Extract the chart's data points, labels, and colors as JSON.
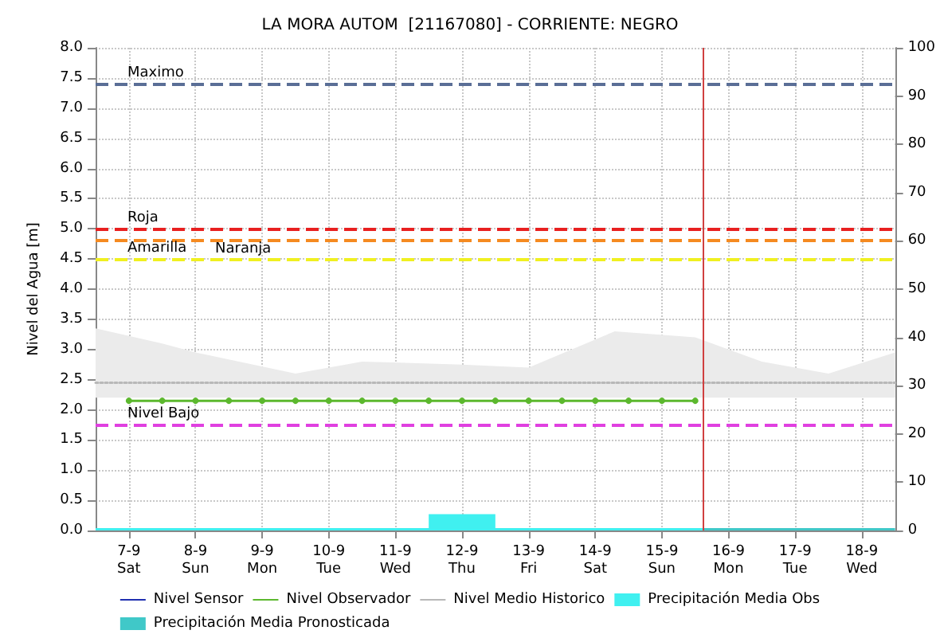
{
  "chart_data": {
    "type": "line",
    "title": "LA MORA AUTOM  [21167080] - CORRIENTE: NEGRO",
    "ylabel": "Nivel del Agua [m]",
    "xlim": [
      "--09-06T12:00",
      "--09-18T12:00"
    ],
    "xticks": [
      {
        "value": "--09-07",
        "label": "7-9\nSat"
      },
      {
        "value": "--09-08",
        "label": "8-9\nSun"
      },
      {
        "value": "--09-09",
        "label": "9-9\nMon"
      },
      {
        "value": "--09-10",
        "label": "10-9\nTue"
      },
      {
        "value": "--09-11",
        "label": "11-9\nWed"
      },
      {
        "value": "--09-12",
        "label": "12-9\nThu"
      },
      {
        "value": "--09-13",
        "label": "13-9\nFri"
      },
      {
        "value": "--09-14",
        "label": "14-9\nSat"
      },
      {
        "value": "--09-15",
        "label": "15-9\nSun"
      },
      {
        "value": "--09-16",
        "label": "16-9\nMon"
      },
      {
        "value": "--09-17",
        "label": "17-9\nTue"
      },
      {
        "value": "--09-18",
        "label": "18-9\nWed"
      }
    ],
    "ylim": [
      0,
      8
    ],
    "yticks": [
      {
        "value": 0,
        "label": "0.0"
      },
      {
        "value": 0.5,
        "label": "0.5"
      },
      {
        "value": 1,
        "label": "1.0"
      },
      {
        "value": 1.5,
        "label": "1.5"
      },
      {
        "value": 2,
        "label": "2.0"
      },
      {
        "value": 2.5,
        "label": "2.5"
      },
      {
        "value": 3,
        "label": "3.0"
      },
      {
        "value": 3.5,
        "label": "3.5"
      },
      {
        "value": 4,
        "label": "4.0"
      },
      {
        "value": 4.5,
        "label": "4.5"
      },
      {
        "value": 5,
        "label": "5.0"
      },
      {
        "value": 5.5,
        "label": "5.5"
      },
      {
        "value": 6,
        "label": "6.0"
      },
      {
        "value": 6.5,
        "label": "6.5"
      },
      {
        "value": 7,
        "label": "7.0"
      },
      {
        "value": 7.5,
        "label": "7.5"
      },
      {
        "value": 8,
        "label": "8.0"
      }
    ],
    "y2lim": [
      0,
      100
    ],
    "y2ticks": [
      0,
      10,
      20,
      30,
      40,
      50,
      60,
      70,
      80,
      90,
      100
    ],
    "grid": true,
    "legend": "bottom",
    "series": [
      {
        "name": "Nivel Sensor",
        "color": "#1f2fb0"
      },
      {
        "name": "Nivel Observador",
        "marker": "circle",
        "color": "#5cb82e",
        "x": [
          "--09-07T00:00",
          "--09-07T12:00",
          "--09-08T00:00",
          "--09-08T12:00",
          "--09-09T00:00",
          "--09-09T12:00",
          "--09-10T00:00",
          "--09-10T12:00",
          "--09-11T00:00",
          "--09-11T12:00",
          "--09-12T00:00",
          "--09-12T12:00",
          "--09-13T00:00",
          "--09-13T12:00",
          "--09-14T00:00",
          "--09-14T12:00",
          "--09-15T00:00",
          "--09-15T12:00"
        ],
        "values": [
          2.15,
          2.15,
          2.15,
          2.15,
          2.15,
          2.15,
          2.15,
          2.15,
          2.15,
          2.15,
          2.15,
          2.15,
          2.15,
          2.15,
          2.15,
          2.15,
          2.15,
          2.15
        ]
      },
      {
        "name": "Nivel Medio Historico",
        "line_style": "dotted",
        "color": "#b8b8b8",
        "x": [
          "--09-06T12:00",
          "--09-07T12:00",
          "--09-08T00:00",
          "--09-09T12:00",
          "--09-10T12:00",
          "--09-12T00:00",
          "--09-13T00:00",
          "--09-14T07:00",
          "--09-15T12:00",
          "--09-16T12:00",
          "--09-17T12:00",
          "--09-18T12:00"
        ],
        "values": [
          2.45,
          2.45,
          2.45,
          2.45,
          2.45,
          2.45,
          2.45,
          2.45,
          2.45,
          2.45,
          2.45,
          2.45
        ],
        "lower": [
          2.2,
          2.2,
          2.2,
          2.2,
          2.2,
          2.2,
          2.2,
          2.2,
          2.2,
          2.2,
          2.2,
          2.2
        ],
        "upper": [
          3.35,
          3.1,
          2.95,
          2.6,
          2.8,
          2.75,
          2.7,
          3.3,
          3.2,
          2.8,
          2.6,
          2.95
        ]
      },
      {
        "name": "Precipitación Media Obs",
        "type": "area",
        "axis": "y2",
        "color": "#40f0f0",
        "x": [
          "--09-06T12:00",
          "--09-11T12:00",
          "--09-12T12:00",
          "--09-15T15:00"
        ],
        "values": [
          0.5,
          3.4,
          0.5,
          0.5
        ]
      },
      {
        "name": "Precipitación Media Pronosticada",
        "type": "area",
        "axis": "y2",
        "color": "#40c8c8",
        "x": [
          "--09-15T15:00",
          "--09-18T12:00"
        ],
        "values": [
          0.5,
          0.5
        ]
      }
    ],
    "ref_lines": [
      {
        "axis": "y",
        "value": 7.4,
        "label": "Maximo",
        "color": "#5a6e96",
        "line_style": "dashed"
      },
      {
        "axis": "y",
        "value": 5.0,
        "label": "Roja",
        "color": "#e82020",
        "line_style": "dashed"
      },
      {
        "axis": "y",
        "value": 4.8,
        "label": "Naranja",
        "color": "#f58a20",
        "line_style": "dashed"
      },
      {
        "axis": "y",
        "value": 4.5,
        "label": "Amarilla",
        "color": "#f0f020",
        "line_style": "dashed"
      },
      {
        "axis": "y",
        "value": 1.75,
        "label": "Nivel Bajo",
        "color": "#e040e0",
        "line_style": "dashed"
      },
      {
        "axis": "x",
        "value": "--09-15T15:00",
        "color": "#d04040",
        "line_style": "solid"
      }
    ]
  }
}
